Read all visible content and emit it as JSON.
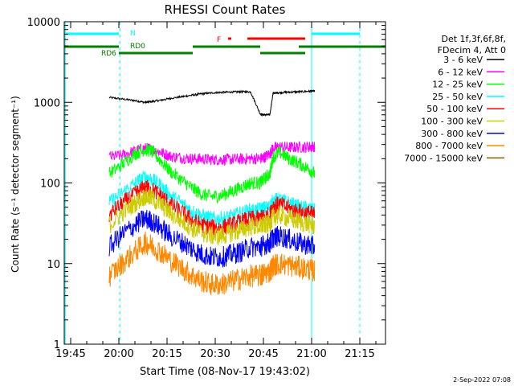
{
  "chart_data": {
    "type": "line",
    "title": "RHESSI Count Rates",
    "xlabel": "Start Time (08-Nov-17 19:43:02)",
    "ylabel": "Count Rate (s⁻¹ detector segment⁻¹)",
    "yscale": "log",
    "ylim": [
      1,
      10000
    ],
    "xlim_minutes": [
      0,
      100
    ],
    "x_ticks": [
      "19:45",
      "20:00",
      "20:15",
      "20:30",
      "20:45",
      "21:00",
      "21:15"
    ],
    "x_tick_minutes": [
      2,
      17,
      32,
      47,
      62,
      77,
      92
    ],
    "y_ticks": [
      "1",
      "10",
      "100",
      "1000",
      "10000"
    ],
    "y_tick_values": [
      1,
      10,
      100,
      1000,
      10000
    ],
    "legend_position": "right",
    "legend_header": [
      "Det 1f,3f,6f,8f,",
      "FDecim 4, Att 0"
    ],
    "footer_date": "2-Sep-2022 07:08",
    "x_minutes": [
      13,
      14,
      18,
      22,
      25,
      27,
      30,
      33,
      37,
      40,
      43,
      46,
      49,
      52,
      55,
      58,
      61,
      62,
      64,
      65,
      67,
      70,
      73,
      76,
      78
    ],
    "series": [
      {
        "name": "3 - 6 keV",
        "color": "#000000",
        "values": [
          null,
          1150,
          1100,
          1050,
          1000,
          1020,
          1060,
          1120,
          1180,
          1230,
          1280,
          1310,
          1330,
          1340,
          1350,
          1350,
          720,
          700,
          700,
          1300,
          1320,
          1340,
          1350,
          1370,
          1380
        ]
      },
      {
        "name": "6 - 12 keV",
        "color": "#ff00ff",
        "values": [
          null,
          210,
          220,
          250,
          270,
          265,
          240,
          215,
          205,
          200,
          198,
          195,
          195,
          196,
          198,
          200,
          200,
          205,
          230,
          270,
          280,
          275,
          278,
          280,
          285
        ]
      },
      {
        "name": "12 - 25 keV",
        "color": "#00ff00",
        "values": [
          null,
          130,
          170,
          230,
          260,
          250,
          190,
          140,
          105,
          85,
          72,
          68,
          70,
          78,
          88,
          100,
          100,
          110,
          130,
          210,
          240,
          200,
          175,
          150,
          130
        ]
      },
      {
        "name": "25 - 50 keV",
        "color": "#00ffff",
        "values": [
          null,
          56,
          75,
          98,
          118,
          112,
          92,
          70,
          54,
          44,
          39,
          36,
          36,
          38,
          42,
          46,
          46,
          48,
          50,
          60,
          62,
          56,
          50,
          48,
          45
        ]
      },
      {
        "name": "50 - 100 keV",
        "color": "#ff0000",
        "values": [
          null,
          40,
          55,
          72,
          88,
          84,
          70,
          54,
          42,
          34,
          30,
          28,
          28,
          30,
          33,
          36,
          36,
          38,
          40,
          52,
          54,
          48,
          44,
          42,
          40
        ]
      },
      {
        "name": "100 - 300 keV",
        "color": "#cccc00",
        "values": [
          null,
          30,
          42,
          56,
          68,
          65,
          54,
          42,
          33,
          27,
          24,
          22,
          22,
          24,
          26,
          29,
          29,
          30,
          31,
          38,
          40,
          36,
          33,
          31,
          29
        ]
      },
      {
        "name": "300 - 800 keV",
        "color": "#0000ff",
        "values": [
          null,
          16,
          23,
          30,
          36,
          34,
          28,
          22,
          18,
          15,
          13,
          12,
          12,
          13,
          14,
          16,
          16,
          17,
          18,
          21,
          22,
          20,
          18,
          17,
          16
        ]
      },
      {
        "name": "800 - 7000 keV",
        "color": "#ff8800",
        "values": [
          null,
          7,
          10,
          14,
          18,
          17,
          14,
          11,
          8.5,
          7,
          6,
          5.5,
          5.5,
          6,
          6.5,
          7,
          7,
          7.5,
          8,
          9.5,
          10,
          9.5,
          9,
          8.5,
          8
        ]
      },
      {
        "name": "7000 - 15000 keV",
        "color": "#806000",
        "values": []
      }
    ],
    "annotations": [
      {
        "text": "N",
        "color": "#00ffff"
      },
      {
        "text": "RD0",
        "color": "#008000"
      },
      {
        "text": "RD6",
        "color": "#008000"
      },
      {
        "text": "F",
        "color": "#ff0000"
      }
    ],
    "status_bars": [
      {
        "label": "N",
        "color": "#00ffff",
        "ranges": [
          [
            0,
            17
          ],
          [
            77,
            92
          ]
        ]
      },
      {
        "label": "RD0",
        "color": "#008000",
        "ranges": [
          [
            0,
            17
          ],
          [
            40,
            61
          ],
          [
            73,
            100
          ]
        ]
      },
      {
        "label": "RD6",
        "color": "#008000",
        "ranges": [
          [
            17,
            40
          ],
          [
            61,
            75
          ]
        ]
      },
      {
        "label": "F",
        "color": "#ff0000",
        "ranges": [
          [
            51,
            52
          ],
          [
            57,
            75
          ]
        ]
      }
    ],
    "vertical_markers": [
      {
        "x": 0.3,
        "color": "#00ffff",
        "style": "solid"
      },
      {
        "x": 17.3,
        "color": "#00ffff",
        "style": "dashed"
      },
      {
        "x": 77,
        "color": "#00ffff",
        "style": "solid"
      },
      {
        "x": 92,
        "color": "#00ffff",
        "style": "dashed"
      }
    ]
  }
}
